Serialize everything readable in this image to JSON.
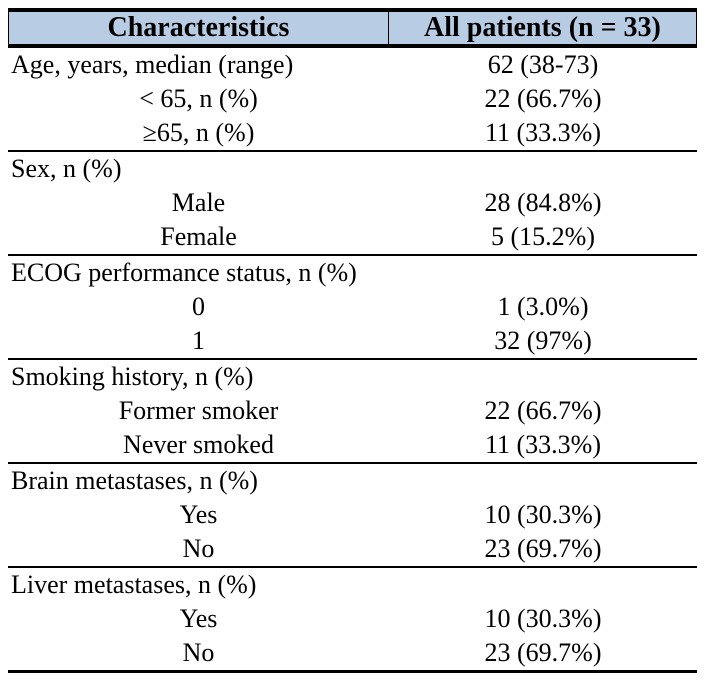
{
  "table": {
    "columns": [
      "Characteristics",
      "All patients (n = 33)"
    ],
    "colors": {
      "header_bg": "#b8cce4",
      "border": "#000000",
      "text": "#000000"
    },
    "sections": [
      {
        "rows": [
          {
            "label": "Age, years, median (range)",
            "value": "62 (38-73)",
            "indent": false
          },
          {
            "label": "< 65, n (%)",
            "value": "22 (66.7%)",
            "indent": true
          },
          {
            "label": "≥65, n (%)",
            "value": "11 (33.3%)",
            "indent": true
          }
        ]
      },
      {
        "rows": [
          {
            "label": "Sex, n (%)",
            "value": "",
            "indent": false
          },
          {
            "label": "Male",
            "value": "28 (84.8%)",
            "indent": true
          },
          {
            "label": "Female",
            "value": "5 (15.2%)",
            "indent": true
          }
        ]
      },
      {
        "rows": [
          {
            "label": "ECOG performance status, n (%)",
            "value": "",
            "indent": false
          },
          {
            "label": "0",
            "value": "1 (3.0%)",
            "indent": true
          },
          {
            "label": "1",
            "value": "32 (97%)",
            "indent": true
          }
        ]
      },
      {
        "rows": [
          {
            "label": "Smoking history, n (%)",
            "value": "",
            "indent": false
          },
          {
            "label": "Former smoker",
            "value": "22 (66.7%)",
            "indent": true
          },
          {
            "label": "Never smoked",
            "value": "11 (33.3%)",
            "indent": true
          }
        ]
      },
      {
        "rows": [
          {
            "label": "Brain metastases, n (%)",
            "value": "",
            "indent": false
          },
          {
            "label": "Yes",
            "value": "10 (30.3%)",
            "indent": true
          },
          {
            "label": "No",
            "value": "23 (69.7%)",
            "indent": true
          }
        ]
      },
      {
        "rows": [
          {
            "label": "Liver metastases, n (%)",
            "value": "",
            "indent": false
          },
          {
            "label": "Yes",
            "value": "10 (30.3%)",
            "indent": true
          },
          {
            "label": "No",
            "value": "23 (69.7%)",
            "indent": true
          }
        ]
      }
    ]
  }
}
